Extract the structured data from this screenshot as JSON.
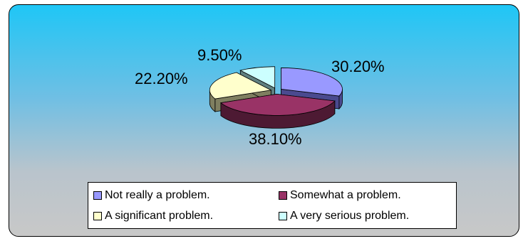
{
  "chart_data": {
    "type": "pie",
    "style": "3d-exploded",
    "slices": [
      {
        "label": "Not really a problem.",
        "value": 30.2,
        "value_label": "30.20%",
        "color": "#9999ff",
        "side_color": "#4a4a8f"
      },
      {
        "label": "Somewhat a problem.",
        "value": 38.1,
        "value_label": "38.10%",
        "color": "#993366",
        "side_color": "#4d1a33"
      },
      {
        "label": "A significant problem.",
        "value": 22.2,
        "value_label": "22.20%",
        "color": "#ffffcc",
        "side_color": "#7f7f60"
      },
      {
        "label": "A very serious problem.",
        "value": 9.5,
        "value_label": "9.50%",
        "color": "#ccffff",
        "side_color": "#608080"
      }
    ],
    "legend": {
      "position": "bottom",
      "columns": 2
    }
  }
}
